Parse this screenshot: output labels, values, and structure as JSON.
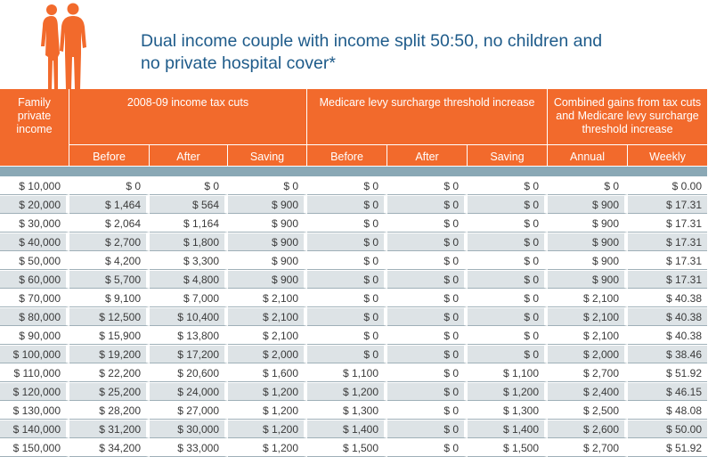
{
  "title": {
    "line1": "Dual income couple with income split 50:50, no children and",
    "line2": "no private hospital cover*"
  },
  "colors": {
    "header_orange": "#f26a2c",
    "title_blue": "#1e5b8a",
    "band_blue": "#8aa8b5",
    "row_alt": "#dde3e6"
  },
  "icons": {
    "figures": "couple-silhouette-icon"
  },
  "header": {
    "family_income": "Family private income",
    "group_tax": "2008-09 income tax cuts",
    "group_medicare": "Medicare levy surcharge threshold increase",
    "group_combined": "Combined gains from tax cuts and Medicare levy surcharge threshold increase",
    "sub": [
      "Before",
      "After",
      "Saving",
      "Before",
      "After",
      "Saving",
      "Annual",
      "Weekly"
    ]
  },
  "rows": [
    [
      "$ 10,000",
      "$ 0",
      "$ 0",
      "$ 0",
      "$ 0",
      "$ 0",
      "$ 0",
      "$ 0",
      "$ 0.00"
    ],
    [
      "$ 20,000",
      "$ 1,464",
      "$ 564",
      "$ 900",
      "$ 0",
      "$ 0",
      "$ 0",
      "$ 900",
      "$ 17.31"
    ],
    [
      "$ 30,000",
      "$ 2,064",
      "$ 1,164",
      "$ 900",
      "$ 0",
      "$ 0",
      "$ 0",
      "$ 900",
      "$ 17.31"
    ],
    [
      "$ 40,000",
      "$ 2,700",
      "$ 1,800",
      "$ 900",
      "$ 0",
      "$ 0",
      "$ 0",
      "$ 900",
      "$ 17.31"
    ],
    [
      "$ 50,000",
      "$ 4,200",
      "$ 3,300",
      "$ 900",
      "$ 0",
      "$ 0",
      "$ 0",
      "$ 900",
      "$ 17.31"
    ],
    [
      "$ 60,000",
      "$ 5,700",
      "$ 4,800",
      "$ 900",
      "$ 0",
      "$ 0",
      "$ 0",
      "$ 900",
      "$ 17.31"
    ],
    [
      "$ 70,000",
      "$ 9,100",
      "$ 7,000",
      "$ 2,100",
      "$ 0",
      "$ 0",
      "$ 0",
      "$ 2,100",
      "$ 40.38"
    ],
    [
      "$ 80,000",
      "$ 12,500",
      "$ 10,400",
      "$ 2,100",
      "$ 0",
      "$ 0",
      "$ 0",
      "$ 2,100",
      "$ 40.38"
    ],
    [
      "$ 90,000",
      "$ 15,900",
      "$ 13,800",
      "$ 2,100",
      "$ 0",
      "$ 0",
      "$ 0",
      "$ 2,100",
      "$ 40.38"
    ],
    [
      "$ 100,000",
      "$ 19,200",
      "$ 17,200",
      "$ 2,000",
      "$ 0",
      "$ 0",
      "$ 0",
      "$ 2,000",
      "$ 38.46"
    ],
    [
      "$ 110,000",
      "$ 22,200",
      "$ 20,600",
      "$ 1,600",
      "$ 1,100",
      "$ 0",
      "$ 1,100",
      "$ 2,700",
      "$ 51.92"
    ],
    [
      "$ 120,000",
      "$ 25,200",
      "$ 24,000",
      "$ 1,200",
      "$ 1,200",
      "$ 0",
      "$ 1,200",
      "$ 2,400",
      "$ 46.15"
    ],
    [
      "$ 130,000",
      "$ 28,200",
      "$ 27,000",
      "$ 1,200",
      "$ 1,300",
      "$ 0",
      "$ 1,300",
      "$ 2,500",
      "$ 48.08"
    ],
    [
      "$ 140,000",
      "$ 31,200",
      "$ 30,000",
      "$ 1,200",
      "$ 1,400",
      "$ 0",
      "$ 1,400",
      "$ 2,600",
      "$ 50.00"
    ],
    [
      "$ 150,000",
      "$ 34,200",
      "$ 33,000",
      "$ 1,200",
      "$ 1,500",
      "$ 0",
      "$ 1,500",
      "$ 2,700",
      "$ 51.92"
    ]
  ]
}
